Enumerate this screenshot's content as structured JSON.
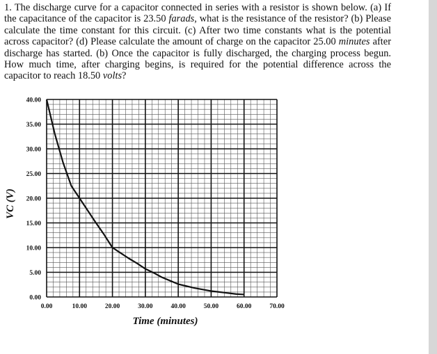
{
  "problem": {
    "segments": [
      "1. The discharge curve for a capacitor connected in series with a resistor is shown below. (a) If the capacitance of the capacitor is ",
      "23.50 ",
      "farads",
      ", what is the resistance of the resistor? (b) Please calculate the time constant for this circuit. (c) After two time constants what is the potential across capacitor? (d) Please calculate the amount of charge on the capacitor ",
      "25.00 ",
      "minutes",
      " after discharge has started. (b) Once the capacitor is fully discharged, the charging process begun. How much time, after charging begins, is required for the potential difference across the capacitor to reach ",
      "18.50 ",
      "volts",
      "?"
    ]
  },
  "chart_data": {
    "type": "line",
    "title": "",
    "xlabel": "Time (minutes)",
    "ylabel": "V_C (V)",
    "xlim": [
      0,
      70
    ],
    "ylim": [
      0,
      40
    ],
    "x_ticks": [
      "0.00",
      "10.00",
      "20.00",
      "30.00",
      "40.00",
      "50.00",
      "60.00",
      "70.00"
    ],
    "y_ticks": [
      "0.00",
      "5.00",
      "10.00",
      "15.00",
      "20.00",
      "25.00",
      "30.00",
      "35.00",
      "40.00"
    ],
    "grid": true,
    "series": [
      {
        "x": [
          0,
          2.5,
          5,
          7.5,
          10,
          12.5,
          15,
          17.5,
          20,
          22.5,
          25,
          27.5,
          30,
          32.5,
          35,
          37.5,
          40,
          42.5,
          45,
          47.5,
          50,
          52.5,
          55,
          57.5,
          60
        ],
        "y": [
          40.0,
          33.0,
          27.2,
          22.5,
          20.0,
          17.5,
          15.0,
          12.6,
          10.0,
          8.9,
          7.8,
          6.8,
          5.7,
          4.9,
          4.0,
          3.3,
          2.6,
          2.2,
          1.8,
          1.5,
          1.2,
          1.0,
          0.8,
          0.6,
          0.5
        ],
        "color": "#111111"
      }
    ]
  }
}
